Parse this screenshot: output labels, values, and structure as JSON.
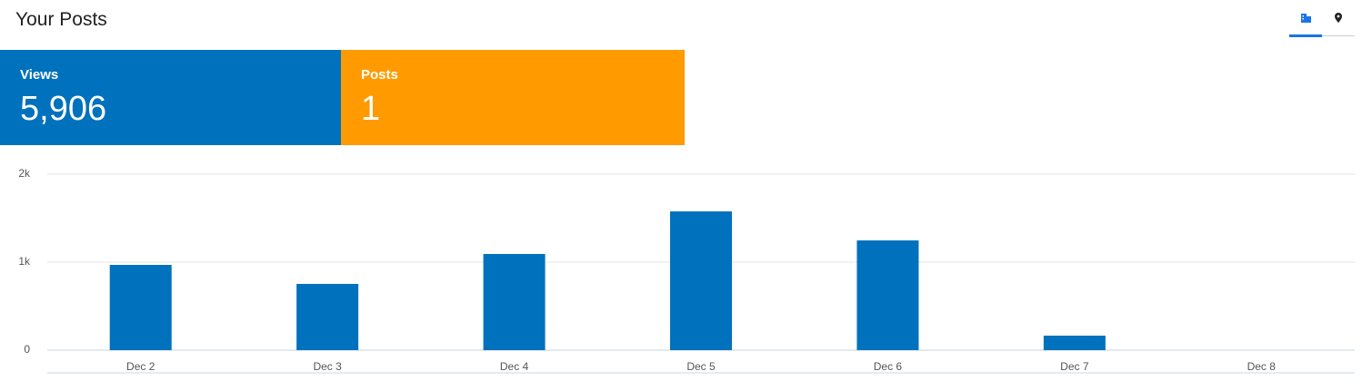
{
  "header": {
    "title": "Your Posts"
  },
  "stats": [
    {
      "label": "Views",
      "value": "5,906"
    },
    {
      "label": "Posts",
      "value": "1"
    }
  ],
  "chart_data": {
    "type": "bar",
    "categories": [
      "Dec 2",
      "Dec 3",
      "Dec 4",
      "Dec 5",
      "Dec 6",
      "Dec 7",
      "Dec 8"
    ],
    "values": [
      969,
      753,
      1093,
      1577,
      1247,
      165,
      0
    ],
    "color": "#0071bc",
    "ylim": [
      0,
      2000
    ],
    "yticks": [
      0,
      {
        "value": 1000,
        "label": "1k"
      },
      {
        "value": 2000,
        "label": "2k"
      }
    ],
    "grid": true
  }
}
